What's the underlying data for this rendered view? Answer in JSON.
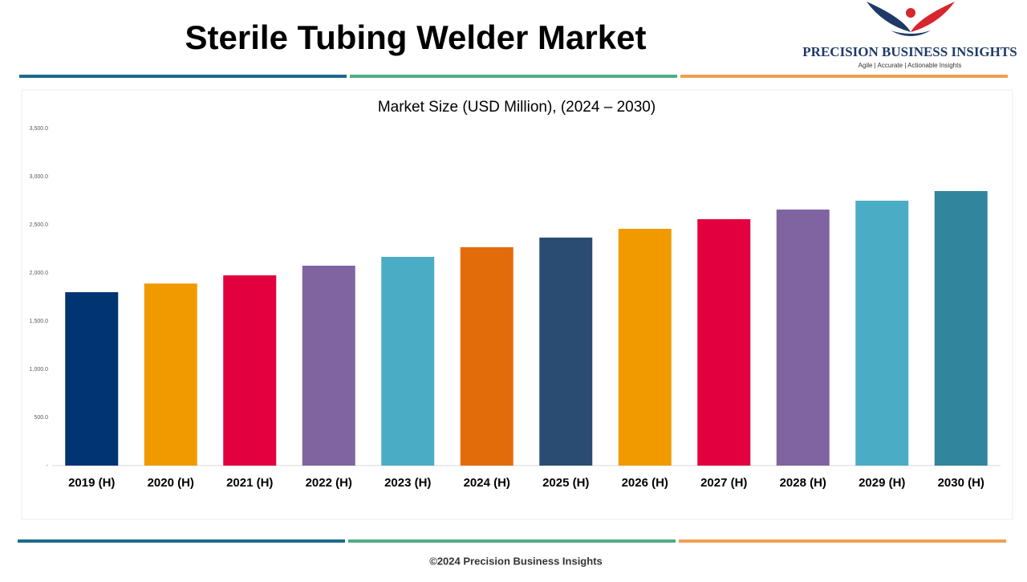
{
  "header": {
    "title": "Sterile Tubing Welder Market",
    "logo_name": "PRECISION BUSINESS INSIGHTS",
    "logo_tagline": "Agile | Accurate | Actionable Insights"
  },
  "chart_data": {
    "type": "bar",
    "title": "Market Size (USD Million), (2024 – 2030)",
    "categories": [
      "2019 (H)",
      "2020 (H)",
      "2021 (H)",
      "2022 (H)",
      "2023 (H)",
      "2024 (H)",
      "2025 (H)",
      "2026 (H)",
      "2027 (H)",
      "2028 (H)",
      "2029 (H)",
      "2030 (H)"
    ],
    "values": [
      1800,
      1890,
      1975,
      2075,
      2167,
      2267,
      2367,
      2458,
      2558,
      2658,
      2750,
      2850
    ],
    "colors": [
      "#003473",
      "#f09a00",
      "#e2003f",
      "#8064a2",
      "#4bacc6",
      "#e36c0a",
      "#2b4c72",
      "#f09a00",
      "#e2003f",
      "#8064a2",
      "#4bacc6",
      "#31859c"
    ],
    "ylim": [
      0,
      3500
    ],
    "yticks": [
      {
        "value": 0,
        "label": "-"
      },
      {
        "value": 500,
        "label": "500.0"
      },
      {
        "value": 1000,
        "label": "1,000.0"
      },
      {
        "value": 1500,
        "label": "1,500.0"
      },
      {
        "value": 2000,
        "label": "2,000.0"
      },
      {
        "value": 2500,
        "label": "2,500.0"
      },
      {
        "value": 3000,
        "label": "3,000.0"
      },
      {
        "value": 3500,
        "label": "3,500.0"
      }
    ],
    "grid": false
  },
  "footer": "©2024 Precision Business Insights"
}
